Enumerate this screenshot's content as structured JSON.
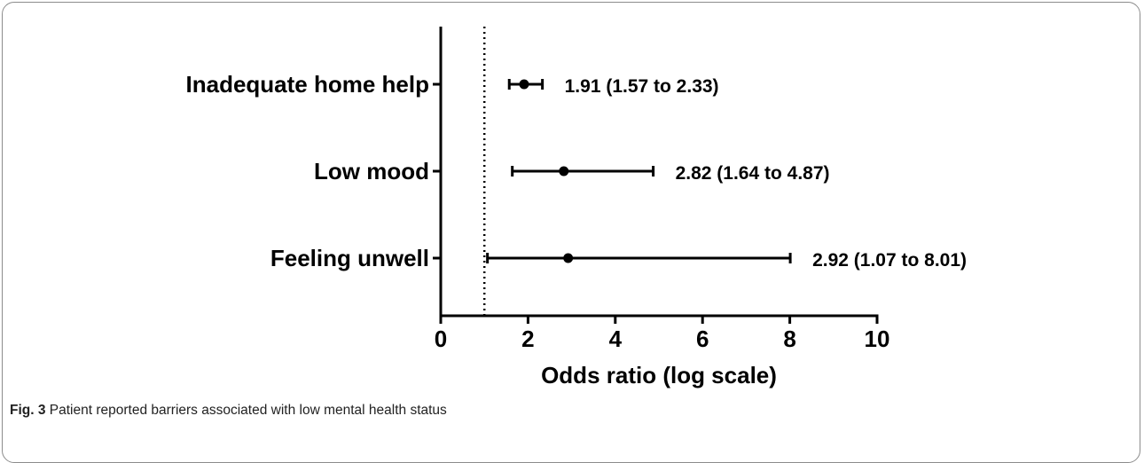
{
  "chart_data": {
    "type": "forest",
    "xlabel": "Odds ratio (log scale)",
    "xlim": [
      0,
      10
    ],
    "xticks": [
      0,
      2,
      4,
      6,
      8,
      10
    ],
    "reference_line": 1,
    "rows": [
      {
        "label": "Inadequate home help",
        "or": 1.91,
        "ci_low": 1.57,
        "ci_high": 2.33,
        "annotation": "1.91 (1.57 to 2.33)"
      },
      {
        "label": "Low mood",
        "or": 2.82,
        "ci_low": 1.64,
        "ci_high": 4.87,
        "annotation": "2.82 (1.64 to 4.87)"
      },
      {
        "label": "Feeling unwell",
        "or": 2.92,
        "ci_low": 1.07,
        "ci_high": 8.01,
        "annotation": "2.92 (1.07 to 8.01)"
      }
    ]
  },
  "caption": {
    "fig_label": "Fig. 3",
    "text": " Patient reported barriers associated with low mental health status"
  }
}
